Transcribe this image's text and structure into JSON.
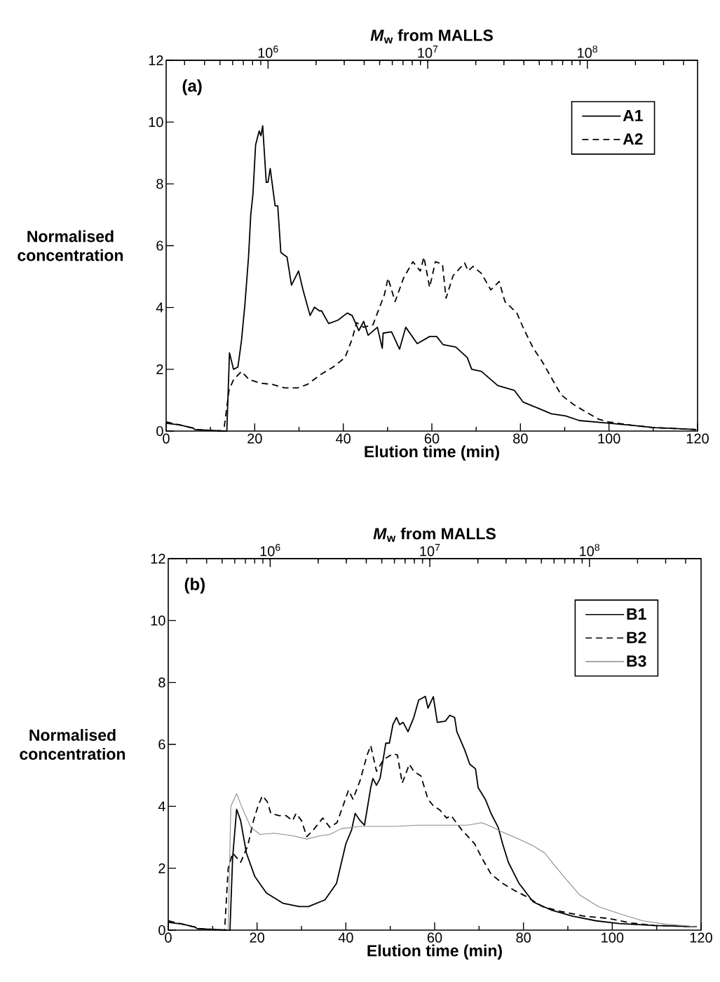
{
  "chart_data": [
    {
      "type": "line",
      "annotations": [
        "(a)"
      ],
      "xlabel": "Elution time (min)",
      "ylabel": "Normalised concentration",
      "x2label": "*M*$_{w}$ from MALLS",
      "xlim": [
        0,
        120
      ],
      "ylim": [
        0,
        12
      ],
      "xticks": [
        0,
        {
          "value": 10,
          "label": null
        },
        20,
        {
          "value": 30,
          "label": null
        },
        40,
        {
          "value": 50,
          "label": null
        },
        60,
        {
          "value": 70,
          "label": null
        },
        80,
        {
          "value": 90,
          "label": null
        },
        100,
        {
          "value": 110,
          "label": null
        },
        120
      ],
      "yticks": [
        0,
        2,
        4,
        6,
        8,
        10,
        12
      ],
      "log": "x2",
      "x2lim": [
        230000,
        490000000
      ],
      "x2ticks": [
        {
          "value": 300000,
          "label": null
        },
        {
          "value": 400000,
          "label": null
        },
        {
          "value": 500000,
          "label": null
        },
        {
          "value": 600000,
          "label": null
        },
        {
          "value": 700000,
          "label": null
        },
        {
          "value": 800000,
          "label": null
        },
        {
          "value": 900000,
          "label": null
        },
        {
          "value": 1000000,
          "label": "10$^{6}$"
        },
        {
          "value": 2000000,
          "label": null
        },
        {
          "value": 3000000,
          "label": null
        },
        {
          "value": 4000000,
          "label": null
        },
        {
          "value": 5000000,
          "label": null
        },
        {
          "value": 6000000,
          "label": null
        },
        {
          "value": 7000000,
          "label": null
        },
        {
          "value": 8000000,
          "label": null
        },
        {
          "value": 9000000,
          "label": null
        },
        {
          "value": 10000000,
          "label": "10$^{7}$"
        },
        {
          "value": 20000000,
          "label": null
        },
        {
          "value": 30000000,
          "label": null
        },
        {
          "value": 40000000,
          "label": null
        },
        {
          "value": 50000000,
          "label": null
        },
        {
          "value": 60000000,
          "label": null
        },
        {
          "value": 70000000,
          "label": null
        },
        {
          "value": 80000000,
          "label": null
        },
        {
          "value": 90000000,
          "label": null
        },
        {
          "value": 100000000,
          "label": "10$^{8}$"
        },
        {
          "value": 200000000,
          "label": null
        },
        {
          "value": 300000000,
          "label": null
        },
        {
          "value": 400000000,
          "label": null
        }
      ],
      "legend": "top right",
      "grid": false,
      "marker": "none",
      "series": [
        {
          "name": "A1",
          "color": "#000000",
          "line_style": "solid",
          "x": [
            0,
            3,
            6,
            6.5,
            13,
            13.7,
            14.3,
            14.7,
            15.2,
            16.2,
            17.0,
            17.8,
            18.6,
            19.1,
            19.6,
            20.2,
            21.0,
            21.4,
            21.8,
            22.6,
            23.0,
            23.5,
            24.6,
            25.2,
            25.9,
            27.3,
            28.3,
            29.9,
            30.9,
            32.5,
            33.5,
            34.6,
            35.1,
            36.7,
            38.8,
            40.9,
            42.0,
            43.5,
            44.6,
            45.6,
            47.7,
            48.8,
            49.0,
            50.9,
            52.7,
            54.1,
            56.7,
            59.5,
            61.1,
            62.5,
            65.4,
            68.0,
            69.0,
            71.2,
            74.9,
            78.6,
            80.6,
            83.8,
            87.0,
            90.2,
            93.3,
            99.7,
            105,
            110.2,
            114.4,
            119.7
          ],
          "values": [
            0.25,
            0.2,
            0.1,
            0.05,
            0,
            0,
            2.53,
            2.3,
            2.0,
            2.07,
            2.91,
            4.12,
            5.63,
            6.99,
            7.67,
            9.26,
            9.71,
            9.56,
            9.88,
            8.05,
            8.05,
            8.5,
            7.29,
            7.29,
            5.78,
            5.63,
            4.72,
            5.18,
            4.57,
            3.74,
            4.01,
            3.89,
            3.89,
            3.48,
            3.59,
            3.82,
            3.74,
            3.25,
            3.55,
            3.1,
            3.36,
            2.68,
            3.17,
            3.21,
            2.65,
            3.36,
            2.83,
            3.06,
            3.06,
            2.8,
            2.72,
            2.38,
            2.0,
            1.93,
            1.47,
            1.32,
            0.94,
            0.75,
            0.56,
            0.49,
            0.34,
            0.26,
            0.19,
            0.11,
            0.09,
            0.05
          ]
        },
        {
          "name": "A2",
          "color": "#000000",
          "line_style": "dashed",
          "x": [
            0,
            3,
            6,
            6.5,
            13,
            14.2,
            15.2,
            17.0,
            18.8,
            21.4,
            24.0,
            26.7,
            29.8,
            31.9,
            35.1,
            37.7,
            40.4,
            42.0,
            43.0,
            44.6,
            46.7,
            47.7,
            49.3,
            50.1,
            51.7,
            53.6,
            55.7,
            57.4,
            58.2,
            59.5,
            60.8,
            62.4,
            63.2,
            64.8,
            67.4,
            68.2,
            69.3,
            71.2,
            73.3,
            75.2,
            76.5,
            79.2,
            80.8,
            82.9,
            85.0,
            87.1,
            89.2,
            91.9,
            94.5,
            97.7,
            99.8,
            105,
            110.2,
            119.7
          ],
          "values": [
            0.3,
            0.2,
            0.1,
            0.05,
            0,
            1.32,
            1.66,
            1.93,
            1.66,
            1.55,
            1.51,
            1.4,
            1.4,
            1.51,
            1.85,
            2.07,
            2.38,
            2.98,
            3.51,
            3.36,
            3.44,
            3.82,
            4.42,
            4.95,
            4.19,
            4.95,
            5.48,
            5.18,
            5.63,
            4.65,
            5.48,
            5.4,
            4.3,
            5.03,
            5.44,
            5.18,
            5.33,
            5.1,
            4.57,
            4.84,
            4.19,
            3.82,
            3.29,
            2.68,
            2.23,
            1.7,
            1.17,
            0.87,
            0.64,
            0.38,
            0.3,
            0.19,
            0.11,
            0.05
          ]
        }
      ]
    },
    {
      "type": "line",
      "annotations": [
        "(b)"
      ],
      "xlabel": "Elution time (min)",
      "ylabel": "Normalised concentration",
      "x2label": "*M*$_{w}$ from MALLS",
      "xlim": [
        0,
        120
      ],
      "ylim": [
        0,
        12
      ],
      "xticks": [
        0,
        {
          "value": 10,
          "label": null
        },
        20,
        {
          "value": 30,
          "label": null
        },
        40,
        {
          "value": 50,
          "label": null
        },
        60,
        {
          "value": 70,
          "label": null
        },
        80,
        {
          "value": 90,
          "label": null
        },
        100,
        {
          "value": 110,
          "label": null
        },
        120
      ],
      "yticks": [
        0,
        2,
        4,
        6,
        8,
        10,
        12
      ],
      "log": "x2",
      "x2lim": [
        230000,
        500000000
      ],
      "x2ticks": [
        {
          "value": 300000,
          "label": null
        },
        {
          "value": 400000,
          "label": null
        },
        {
          "value": 500000,
          "label": null
        },
        {
          "value": 600000,
          "label": null
        },
        {
          "value": 700000,
          "label": null
        },
        {
          "value": 800000,
          "label": null
        },
        {
          "value": 900000,
          "label": null
        },
        {
          "value": 1000000,
          "label": "10$^{6}$"
        },
        {
          "value": 2000000,
          "label": null
        },
        {
          "value": 3000000,
          "label": null
        },
        {
          "value": 4000000,
          "label": null
        },
        {
          "value": 5000000,
          "label": null
        },
        {
          "value": 6000000,
          "label": null
        },
        {
          "value": 7000000,
          "label": null
        },
        {
          "value": 8000000,
          "label": null
        },
        {
          "value": 9000000,
          "label": null
        },
        {
          "value": 10000000,
          "label": "10$^{7}$"
        },
        {
          "value": 20000000,
          "label": null
        },
        {
          "value": 30000000,
          "label": null
        },
        {
          "value": 40000000,
          "label": null
        },
        {
          "value": 50000000,
          "label": null
        },
        {
          "value": 60000000,
          "label": null
        },
        {
          "value": 70000000,
          "label": null
        },
        {
          "value": 80000000,
          "label": null
        },
        {
          "value": 90000000,
          "label": null
        },
        {
          "value": 100000000,
          "label": "10$^{8}$"
        },
        {
          "value": 200000000,
          "label": null
        },
        {
          "value": 300000000,
          "label": null
        },
        {
          "value": 400000000,
          "label": null
        }
      ],
      "legend": "top right",
      "grid": false,
      "marker": "none",
      "series": [
        {
          "name": "B1",
          "color": "#000000",
          "line_style": "solid",
          "x": [
            0,
            3,
            6,
            6.5,
            13,
            13.9,
            14.5,
            15.4,
            16.3,
            17.6,
            19.5,
            22.1,
            25.8,
            29.5,
            31.6,
            35.3,
            37.9,
            40.0,
            41.3,
            42.1,
            43.2,
            44.2,
            45.6,
            46.1,
            46.9,
            47.7,
            49.0,
            49.8,
            50.6,
            51.4,
            52.1,
            52.9,
            54.0,
            55.3,
            56.4,
            57.9,
            58.5,
            59.7,
            60.6,
            62.4,
            63.4,
            64.5,
            65.0,
            66.8,
            67.9,
            69.2,
            69.8,
            71.4,
            72.7,
            74.3,
            75.3,
            76.6,
            79.0,
            82.2,
            86.4,
            91.1,
            96.4,
            101.6,
            109.5,
            119.0
          ],
          "values": [
            0.25,
            0.2,
            0.1,
            0.05,
            0,
            0,
            2.34,
            3.9,
            3.54,
            2.49,
            1.73,
            1.2,
            0.87,
            0.76,
            0.76,
            0.98,
            1.51,
            2.79,
            3.24,
            3.77,
            3.54,
            3.39,
            4.6,
            4.9,
            4.68,
            4.9,
            6.04,
            6.04,
            6.64,
            6.87,
            6.64,
            6.71,
            6.41,
            6.87,
            7.43,
            7.55,
            7.17,
            7.54,
            6.71,
            6.75,
            6.94,
            6.87,
            6.41,
            5.81,
            5.36,
            5.21,
            4.6,
            4.23,
            3.77,
            3.32,
            2.79,
            2.19,
            1.51,
            0.91,
            0.64,
            0.45,
            0.3,
            0.21,
            0.15,
            0.11
          ]
        },
        {
          "name": "B2",
          "color": "#000000",
          "line_style": "dashed",
          "x": [
            0,
            3,
            6,
            6.5,
            12.7,
            13.5,
            14.5,
            16.3,
            17.9,
            19.2,
            20.2,
            21.2,
            22.3,
            23.1,
            24.9,
            26.5,
            28.0,
            28.8,
            30.0,
            31.2,
            32.7,
            34.8,
            36.4,
            38.0,
            39.5,
            40.6,
            41.6,
            43.2,
            44.8,
            45.6,
            46.9,
            48.5,
            50.6,
            51.6,
            52.7,
            54.3,
            55.3,
            56.9,
            58.5,
            59.8,
            61.1,
            62.7,
            63.7,
            66.1,
            69.0,
            70.6,
            72.7,
            75.3,
            78.0,
            80.6,
            84.3,
            88.5,
            93.7,
            99.0,
            104.3,
            109.5,
            119.0
          ],
          "values": [
            0.3,
            0.2,
            0.1,
            0.05,
            0,
            2.0,
            2.49,
            2.19,
            2.72,
            3.54,
            4.0,
            4.34,
            4.15,
            3.77,
            3.7,
            3.7,
            3.54,
            3.77,
            3.54,
            3.02,
            3.24,
            3.62,
            3.32,
            3.47,
            4.07,
            4.52,
            4.23,
            4.83,
            5.66,
            5.96,
            5.13,
            5.51,
            5.7,
            5.66,
            4.75,
            5.36,
            5.13,
            4.98,
            4.23,
            4.0,
            3.89,
            3.62,
            3.7,
            3.24,
            2.79,
            2.34,
            1.81,
            1.51,
            1.28,
            1.09,
            0.76,
            0.6,
            0.45,
            0.38,
            0.23,
            0.15,
            0.11
          ]
        },
        {
          "name": "B3",
          "color": "#8c8c8c",
          "line_style": "solid",
          "x": [
            13.5,
            14.1,
            15.4,
            16.5,
            18.6,
            20.7,
            23.9,
            28.0,
            31.2,
            34.3,
            36.4,
            39.0,
            43.2,
            51.1,
            56.4,
            61.1,
            67.4,
            70.6,
            72.7,
            74.8,
            79.0,
            82.2,
            84.8,
            86.9,
            89.5,
            92.7,
            96.9,
            101.6,
            106.9,
            112.2,
            119.0
          ],
          "values": [
            0,
            4.0,
            4.41,
            4.0,
            3.32,
            3.09,
            3.13,
            3.05,
            2.94,
            3.05,
            3.09,
            3.28,
            3.35,
            3.35,
            3.39,
            3.39,
            3.39,
            3.47,
            3.35,
            3.2,
            2.94,
            2.72,
            2.49,
            2.11,
            1.66,
            1.13,
            0.76,
            0.53,
            0.3,
            0.19,
            0.11
          ]
        }
      ]
    }
  ]
}
